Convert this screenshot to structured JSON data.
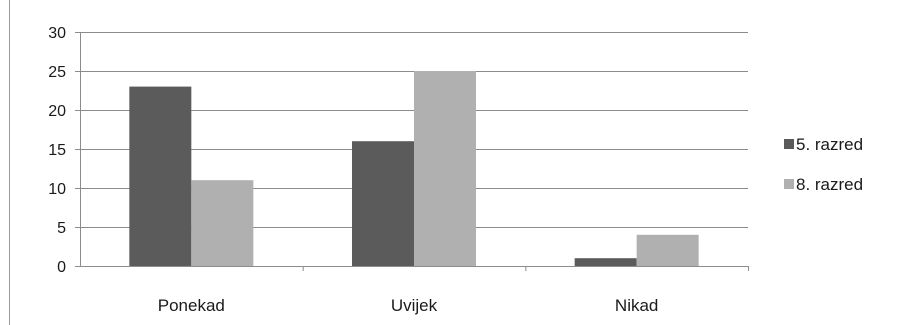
{
  "chart_data": {
    "type": "bar",
    "categories": [
      "Ponekad",
      "Uvijek",
      "Nikad"
    ],
    "series": [
      {
        "name": "5. razred",
        "values": [
          23,
          16,
          1
        ],
        "color": "#5b5b5b"
      },
      {
        "name": "8. razred",
        "values": [
          11,
          25,
          4
        ],
        "color": "#b0b0b0"
      }
    ],
    "ylim": [
      0,
      30
    ],
    "yticks": [
      0,
      5,
      10,
      15,
      20,
      25,
      30
    ],
    "grid": true,
    "legend_position": "right",
    "gridline_color": "#8c8c8c"
  }
}
